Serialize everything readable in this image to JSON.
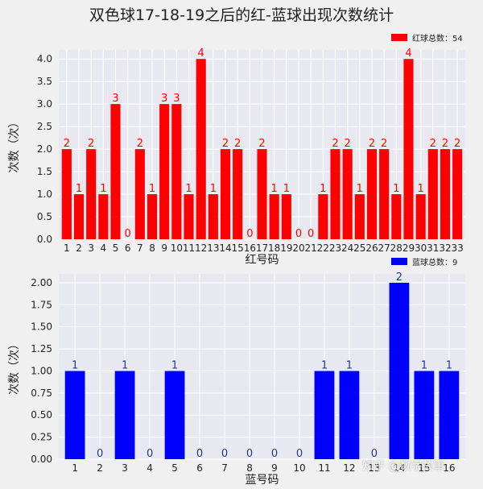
{
  "title": "双色球17-18-19之后的红-蓝球出现次数统计",
  "watermark": "知乎 @数字故事",
  "colors": {
    "red": "#ff0000",
    "blue": "#0000ff",
    "background": "#e8e8f0",
    "grid": "#ffffff",
    "blue_label": "#1f3a93"
  },
  "chart_data": [
    {
      "type": "bar",
      "xlabel": "红号码",
      "ylabel": "次数（次）",
      "legend": "红球总数：54",
      "legend_position": "top-right",
      "grid": true,
      "ylim": [
        0,
        4.2
      ],
      "yticks": [
        0.0,
        0.5,
        1.0,
        1.5,
        2.0,
        2.5,
        3.0,
        3.5,
        4.0
      ],
      "ytick_labels": [
        "0.0",
        "0.5",
        "1.0",
        "1.5",
        "2.0",
        "2.5",
        "3.0",
        "3.5",
        "4.0"
      ],
      "categories": [
        "1",
        "2",
        "3",
        "4",
        "5",
        "6",
        "7",
        "8",
        "9",
        "10",
        "11",
        "12",
        "13",
        "14",
        "15",
        "16",
        "17",
        "18",
        "19",
        "20",
        "21",
        "22",
        "23",
        "24",
        "25",
        "26",
        "27",
        "28",
        "29",
        "30",
        "31",
        "32",
        "33"
      ],
      "values": [
        2,
        1,
        2,
        1,
        3,
        0,
        2,
        1,
        3,
        3,
        1,
        4,
        1,
        2,
        2,
        0,
        2,
        1,
        1,
        0,
        0,
        1,
        2,
        2,
        1,
        2,
        2,
        1,
        4,
        1,
        2,
        2,
        2
      ],
      "color": "#ff0000"
    },
    {
      "type": "bar",
      "xlabel": "蓝号码",
      "ylabel": "次数（次）",
      "legend": "蓝球总数：9",
      "legend_position": "top-right",
      "grid": true,
      "ylim": [
        0,
        2.1
      ],
      "yticks": [
        0.0,
        0.25,
        0.5,
        0.75,
        1.0,
        1.25,
        1.5,
        1.75,
        2.0
      ],
      "ytick_labels": [
        "0.00",
        "0.25",
        "0.50",
        "0.75",
        "1.00",
        "1.25",
        "1.50",
        "1.75",
        "2.00"
      ],
      "categories": [
        "1",
        "2",
        "3",
        "4",
        "5",
        "6",
        "7",
        "8",
        "9",
        "10",
        "11",
        "12",
        "13",
        "14",
        "15",
        "16"
      ],
      "values": [
        1,
        0,
        1,
        0,
        1,
        0,
        0,
        0,
        0,
        0,
        1,
        1,
        0,
        2,
        1,
        1
      ],
      "color": "#0000ff"
    }
  ]
}
